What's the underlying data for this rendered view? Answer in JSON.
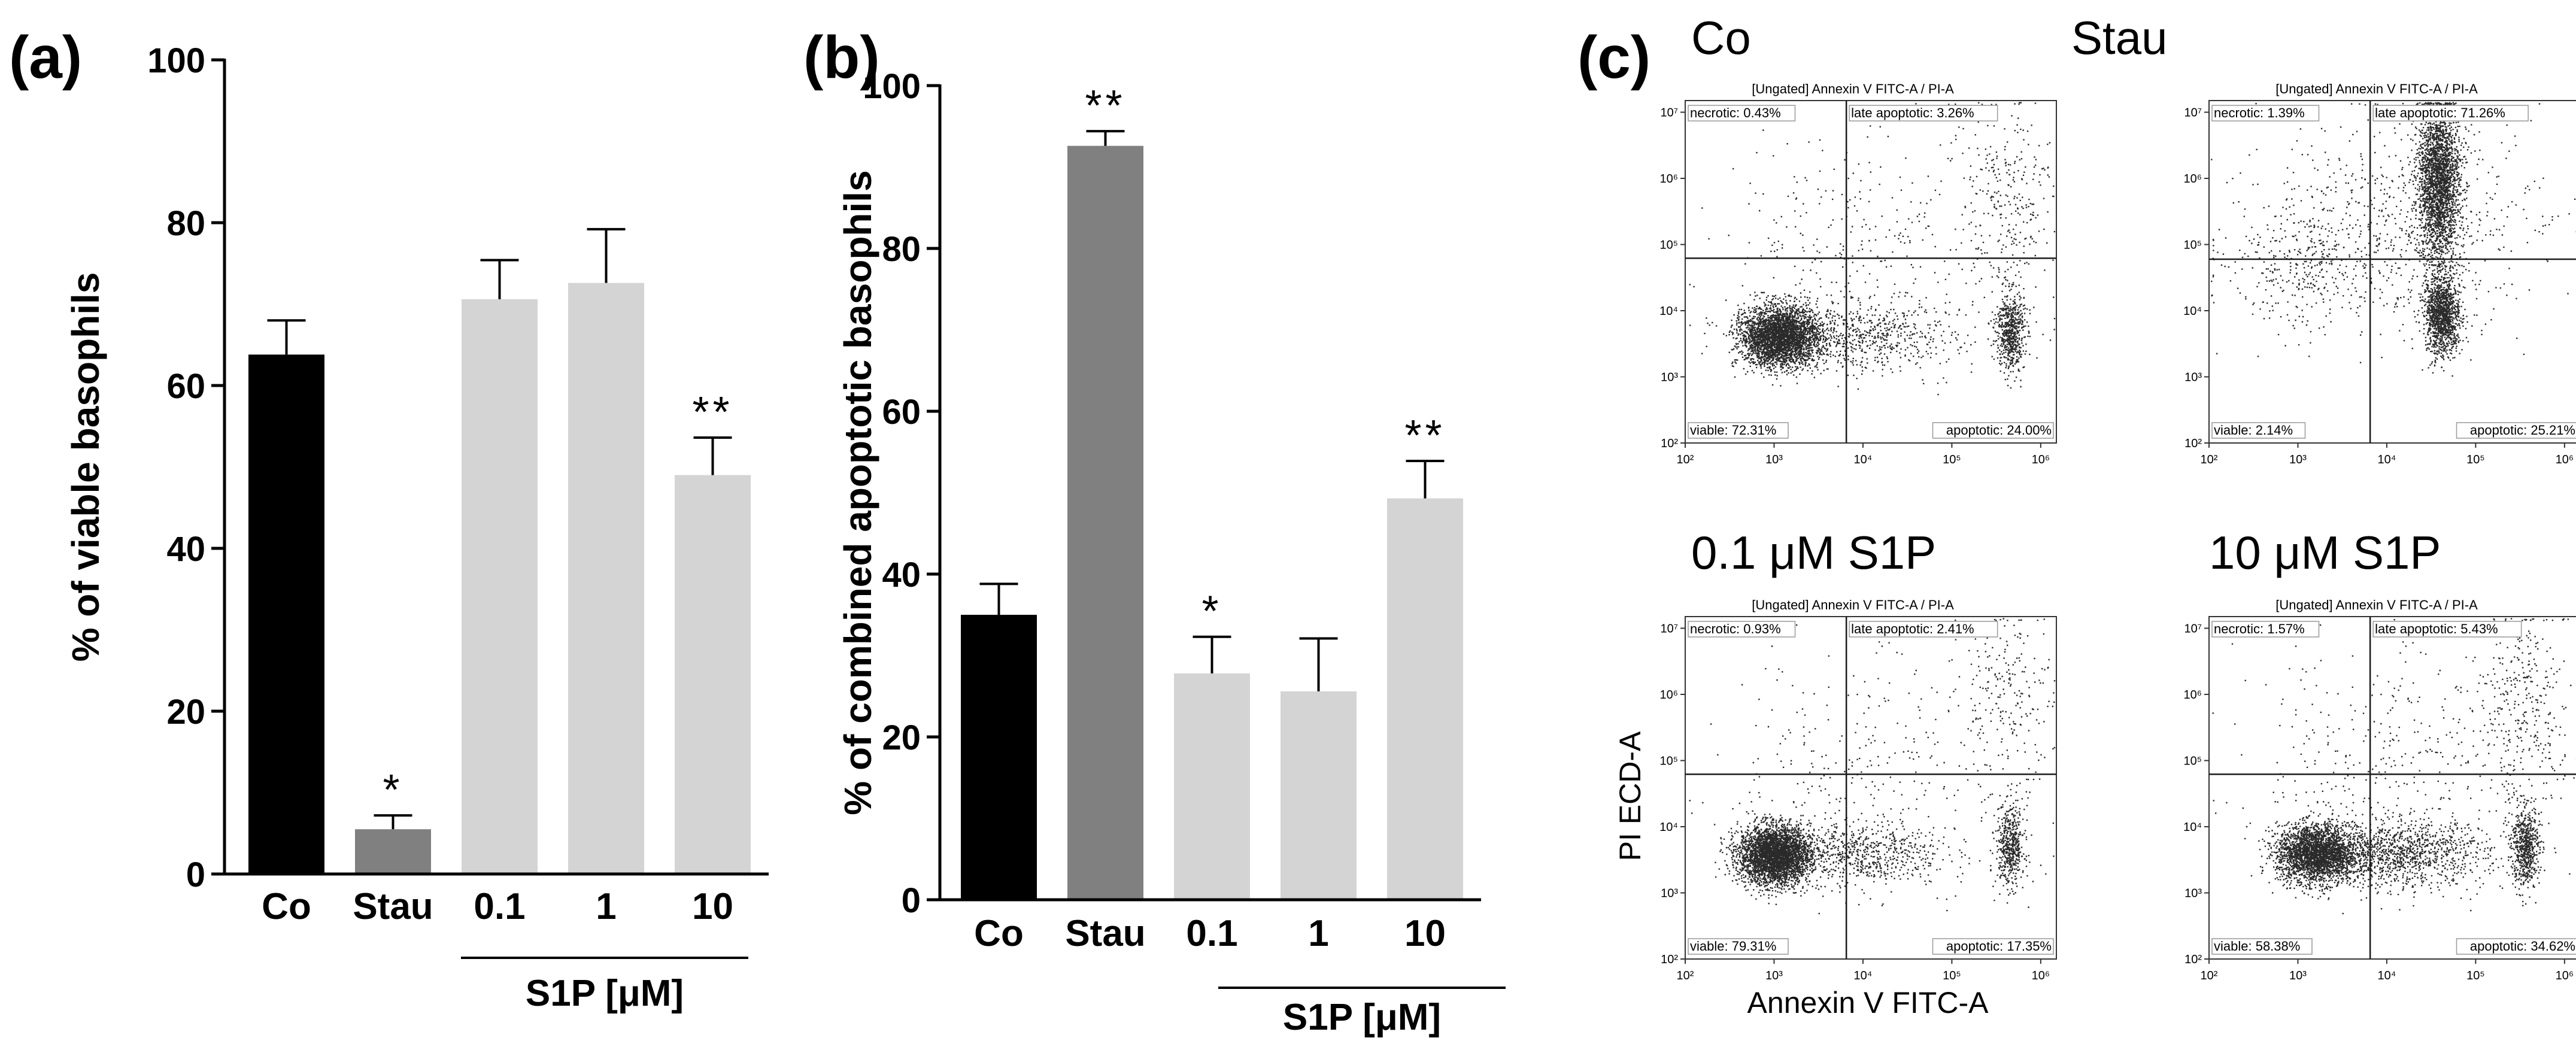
{
  "figure": {
    "bar_colors": {
      "control": "#000000",
      "stau": "#808080",
      "s1p": "#d4d4d4"
    },
    "dot_color": "#2a2a2a",
    "quadrant_color": "#1a1a1a"
  },
  "chart_data": [
    {
      "type": "bar",
      "panel_label": "(a)",
      "ylabel": "% of viable basophils",
      "categories": [
        "Co",
        "Stau",
        "0.1",
        "1",
        "10"
      ],
      "values": [
        63.8,
        5.5,
        70.6,
        72.6,
        49.0
      ],
      "errors": [
        4.2,
        1.7,
        4.8,
        6.6,
        4.6
      ],
      "significance": [
        "",
        "*",
        "",
        "",
        "**"
      ],
      "color_keys": [
        "control",
        "stau",
        "s1p",
        "s1p",
        "s1p"
      ],
      "group_label": "S1P [μM]",
      "ylim": [
        0,
        100
      ],
      "yticks": [
        0,
        20,
        40,
        60,
        80,
        100
      ]
    },
    {
      "type": "bar",
      "panel_label": "(b)",
      "ylabel": "% of combined apoptotic basophils",
      "categories": [
        "Co",
        "Stau",
        "0.1",
        "1",
        "10"
      ],
      "values": [
        35.0,
        92.6,
        27.8,
        25.6,
        49.3
      ],
      "errors": [
        3.8,
        1.8,
        4.5,
        6.5,
        4.6
      ],
      "significance": [
        "",
        "**",
        "*",
        "",
        "**"
      ],
      "color_keys": [
        "control",
        "stau",
        "s1p",
        "s1p",
        "s1p"
      ],
      "group_label": "S1P [μM]",
      "ylim": [
        0,
        100
      ],
      "yticks": [
        0,
        20,
        40,
        60,
        80,
        100
      ]
    },
    {
      "type": "scatter",
      "panel_label": "(c)",
      "xlabel": "Annexin V FITC-A",
      "ylabel": "PI ECD-A",
      "axis_scale": "log",
      "xlim": [
        100,
        1500000
      ],
      "ylim": [
        100,
        15000000
      ],
      "x_ticks": [
        "10²",
        "10³",
        "10⁴",
        "10⁵",
        "10⁶"
      ],
      "y_ticks": [
        "10²",
        "10³",
        "10⁴",
        "10⁵",
        "10⁶",
        "10⁷"
      ],
      "plots": [
        {
          "title": "Co",
          "header": "[Ungated] Annexin V FITC-A / PI-A",
          "x_gate": 6500,
          "y_gate": 62000,
          "quadrants": {
            "necrotic": "necrotic: 0.43%",
            "late_apoptotic": "late apoptotic: 3.26%",
            "viable": "viable: 72.31%",
            "apoptotic": "apoptotic: 24.00%"
          }
        },
        {
          "title": "Stau",
          "header": "[Ungated] Annexin V FITC-A / PI-A",
          "x_gate": 6500,
          "y_gate": 60000,
          "quadrants": {
            "necrotic": "necrotic: 1.39%",
            "late_apoptotic": "late apoptotic: 71.26%",
            "viable": "viable: 2.14%",
            "apoptotic": "apoptotic: 25.21%"
          }
        },
        {
          "title": "0.1 μM S1P",
          "header": "[Ungated] Annexin V FITC-A / PI-A",
          "x_gate": 6500,
          "y_gate": 62000,
          "quadrants": {
            "necrotic": "necrotic: 0.93%",
            "late_apoptotic": "late apoptotic: 2.41%",
            "viable": "viable: 79.31%",
            "apoptotic": "apoptotic: 17.35%"
          }
        },
        {
          "title": "10 μM S1P",
          "header": "[Ungated] Annexin V FITC-A / PI-A",
          "x_gate": 6500,
          "y_gate": 62000,
          "quadrants": {
            "necrotic": "necrotic: 1.57%",
            "late_apoptotic": "late apoptotic: 5.43%",
            "viable": "viable: 58.38%",
            "apoptotic": "apoptotic: 34.62%"
          }
        }
      ]
    }
  ]
}
